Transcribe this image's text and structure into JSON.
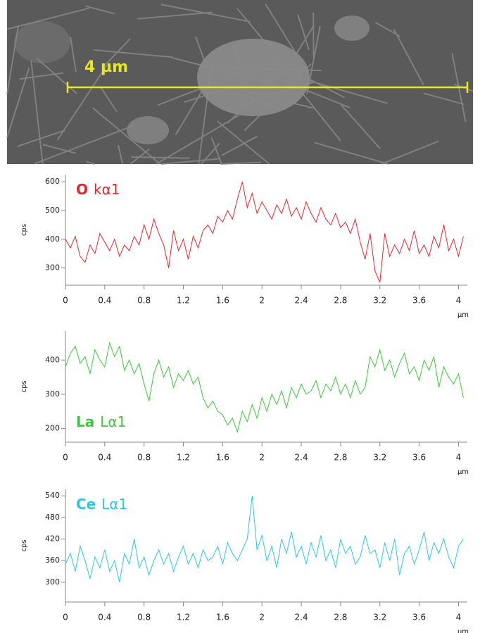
{
  "scale_bar_label": "4 µm",
  "chart_data": [
    {
      "type": "line",
      "title": [
        "O",
        "kα1"
      ],
      "ylabel": "cps",
      "xlabel": "µm",
      "color": "#e8242c",
      "x": [
        0,
        0.05,
        0.1,
        0.15,
        0.2,
        0.25,
        0.3,
        0.35,
        0.4,
        0.45,
        0.5,
        0.55,
        0.6,
        0.65,
        0.7,
        0.75,
        0.8,
        0.85,
        0.9,
        0.95,
        1,
        1.05,
        1.1,
        1.15,
        1.2,
        1.25,
        1.3,
        1.35,
        1.4,
        1.45,
        1.5,
        1.55,
        1.6,
        1.65,
        1.7,
        1.75,
        1.8,
        1.85,
        1.9,
        1.95,
        2,
        2.05,
        2.1,
        2.15,
        2.2,
        2.25,
        2.3,
        2.35,
        2.4,
        2.45,
        2.5,
        2.55,
        2.6,
        2.65,
        2.7,
        2.75,
        2.8,
        2.85,
        2.9,
        2.95,
        3,
        3.05,
        3.1,
        3.15,
        3.2,
        3.25,
        3.3,
        3.35,
        3.4,
        3.45,
        3.5,
        3.55,
        3.6,
        3.65,
        3.7,
        3.75,
        3.8,
        3.85,
        3.9,
        3.95,
        4,
        4.05
      ],
      "values": [
        400,
        370,
        410,
        340,
        320,
        380,
        350,
        420,
        390,
        360,
        400,
        340,
        380,
        360,
        410,
        380,
        450,
        400,
        470,
        420,
        380,
        300,
        430,
        360,
        400,
        330,
        410,
        370,
        430,
        450,
        420,
        480,
        460,
        500,
        470,
        540,
        600,
        510,
        560,
        490,
        530,
        500,
        470,
        520,
        490,
        540,
        480,
        510,
        470,
        530,
        490,
        460,
        510,
        470,
        450,
        490,
        440,
        460,
        420,
        470,
        390,
        330,
        420,
        290,
        250,
        420,
        340,
        380,
        350,
        400,
        360,
        430,
        350,
        380,
        340,
        410,
        370,
        450,
        360,
        400,
        340,
        410
      ],
      "xlim": [
        0,
        4.09
      ],
      "xticks": [
        0,
        0.4,
        0.8,
        1.2,
        1.6,
        2,
        2.4,
        2.8,
        3.2,
        3.6,
        4
      ],
      "ylim": [
        240,
        625
      ],
      "yticks": [
        300,
        400,
        500,
        600
      ]
    },
    {
      "type": "line",
      "title": [
        "La",
        "Lα1"
      ],
      "ylabel": "cps",
      "xlabel": "µm",
      "color": "#3cc83c",
      "x": [
        0,
        0.05,
        0.1,
        0.15,
        0.2,
        0.25,
        0.3,
        0.35,
        0.4,
        0.45,
        0.5,
        0.55,
        0.6,
        0.65,
        0.7,
        0.75,
        0.8,
        0.85,
        0.9,
        0.95,
        1,
        1.05,
        1.1,
        1.15,
        1.2,
        1.25,
        1.3,
        1.35,
        1.4,
        1.45,
        1.5,
        1.55,
        1.6,
        1.65,
        1.7,
        1.75,
        1.8,
        1.85,
        1.9,
        1.95,
        2,
        2.05,
        2.1,
        2.15,
        2.2,
        2.25,
        2.3,
        2.35,
        2.4,
        2.45,
        2.5,
        2.55,
        2.6,
        2.65,
        2.7,
        2.75,
        2.8,
        2.85,
        2.9,
        2.95,
        3,
        3.05,
        3.1,
        3.15,
        3.2,
        3.25,
        3.3,
        3.35,
        3.4,
        3.45,
        3.5,
        3.55,
        3.6,
        3.65,
        3.7,
        3.75,
        3.8,
        3.85,
        3.9,
        3.95,
        4,
        4.05
      ],
      "values": [
        380,
        420,
        440,
        390,
        410,
        360,
        430,
        400,
        380,
        450,
        410,
        440,
        370,
        400,
        360,
        390,
        330,
        280,
        360,
        400,
        350,
        380,
        320,
        360,
        340,
        370,
        330,
        350,
        290,
        260,
        280,
        250,
        240,
        210,
        230,
        190,
        250,
        220,
        270,
        230,
        290,
        250,
        300,
        270,
        310,
        260,
        320,
        290,
        330,
        300,
        310,
        340,
        290,
        330,
        310,
        350,
        300,
        330,
        290,
        340,
        300,
        320,
        410,
        380,
        430,
        370,
        400,
        350,
        390,
        420,
        360,
        380,
        340,
        400,
        370,
        410,
        320,
        380,
        350,
        330,
        360,
        290
      ],
      "xlim": [
        0,
        4.09
      ],
      "xticks": [
        0,
        0.4,
        0.8,
        1.2,
        1.6,
        2,
        2.4,
        2.8,
        3.2,
        3.6,
        4
      ],
      "ylim": [
        160,
        485
      ],
      "yticks": [
        200,
        300,
        400
      ]
    },
    {
      "type": "line",
      "title": [
        "Ce",
        "Lα1"
      ],
      "ylabel": "cps",
      "xlabel": "µm",
      "color": "#2cc8e0",
      "x": [
        0,
        0.05,
        0.1,
        0.15,
        0.2,
        0.25,
        0.3,
        0.35,
        0.4,
        0.45,
        0.5,
        0.55,
        0.6,
        0.65,
        0.7,
        0.75,
        0.8,
        0.85,
        0.9,
        0.95,
        1,
        1.05,
        1.1,
        1.15,
        1.2,
        1.25,
        1.3,
        1.35,
        1.4,
        1.45,
        1.5,
        1.55,
        1.6,
        1.65,
        1.7,
        1.75,
        1.8,
        1.85,
        1.9,
        1.95,
        2,
        2.05,
        2.1,
        2.15,
        2.2,
        2.25,
        2.3,
        2.35,
        2.4,
        2.45,
        2.5,
        2.55,
        2.6,
        2.65,
        2.7,
        2.75,
        2.8,
        2.85,
        2.9,
        2.95,
        3,
        3.05,
        3.1,
        3.15,
        3.2,
        3.25,
        3.3,
        3.35,
        3.4,
        3.45,
        3.5,
        3.55,
        3.6,
        3.65,
        3.7,
        3.75,
        3.8,
        3.85,
        3.9,
        3.95,
        4,
        4.05
      ],
      "values": [
        350,
        380,
        330,
        400,
        360,
        310,
        370,
        340,
        390,
        330,
        360,
        300,
        380,
        350,
        420,
        340,
        370,
        320,
        360,
        390,
        350,
        380,
        330,
        370,
        400,
        350,
        380,
        340,
        390,
        360,
        370,
        400,
        350,
        410,
        380,
        360,
        390,
        420,
        540,
        390,
        430,
        360,
        400,
        340,
        420,
        380,
        440,
        370,
        400,
        350,
        410,
        370,
        430,
        360,
        390,
        340,
        420,
        380,
        400,
        350,
        370,
        430,
        380,
        390,
        340,
        410,
        360,
        420,
        320,
        380,
        400,
        350,
        390,
        440,
        360,
        410,
        380,
        420,
        370,
        340,
        400,
        420
      ],
      "xlim": [
        0,
        4.09
      ],
      "xticks": [
        0,
        0.4,
        0.8,
        1.2,
        1.6,
        2,
        2.4,
        2.8,
        3.2,
        3.6,
        4
      ],
      "ylim": [
        245,
        558
      ],
      "yticks": [
        300,
        360,
        420,
        480,
        540
      ]
    }
  ]
}
